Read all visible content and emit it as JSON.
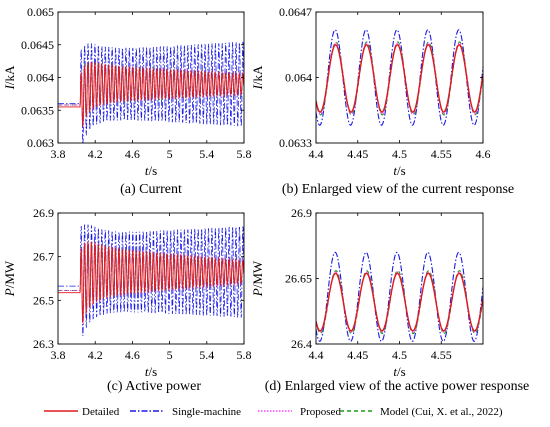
{
  "chart_data": [
    {
      "id": "a",
      "type": "line",
      "caption": "(a) Current",
      "xlabel_var": "t",
      "xlabel_unit": "/s",
      "ylabel_var": "I",
      "ylabel_unit": "/kA",
      "xlim": [
        3.8,
        5.8
      ],
      "ylim": [
        0.063,
        0.065
      ],
      "xticks": [
        "3.8",
        "4.2",
        "4.6",
        "5",
        "5.4",
        "5.8"
      ],
      "yticks": [
        "0.063",
        "0.0635",
        "0.064",
        "0.0645",
        "0.065"
      ],
      "pre_fault_values": {
        "Detailed": 0.06355,
        "Single-machine": 0.0636,
        "Proposed": 0.06358,
        "Model (Cui, X. et al., 2022)": 0.06358
      },
      "disturbance_time": 4.04,
      "center_value": 0.0639,
      "series_amplitude_trend": {
        "Detailed": {
          "start": 0.0003,
          "end": 0.00015
        },
        "Single-machine": {
          "start": 0.0005,
          "end": 0.00065
        },
        "Proposed": {
          "start": 0.0003,
          "end": 0.00018
        },
        "Model (Cui, X. et al., 2022)": {
          "start": 0.0003,
          "end": 0.00018
        }
      }
    },
    {
      "id": "b",
      "type": "line",
      "caption": "(b) Enlarged view of the current response",
      "xlabel_var": "t",
      "xlabel_unit": "/s",
      "ylabel_var": "I",
      "ylabel_unit": "/kA",
      "xlim": [
        4.4,
        4.6
      ],
      "ylim": [
        0.0633,
        0.0647
      ],
      "xticks": [
        "4.4",
        "4.45",
        "4.5",
        "4.55",
        "4.6"
      ],
      "yticks": [
        "0.0633",
        "0.064",
        "0.0647"
      ],
      "period": 0.037,
      "phase_peak": 4.424,
      "series": [
        {
          "name": "Detailed",
          "center": 0.06399,
          "amplitude": 0.00036
        },
        {
          "name": "Single-machine",
          "center": 0.064,
          "amplitude": 0.00051
        },
        {
          "name": "Proposed",
          "center": 0.06399,
          "amplitude": 0.00038
        },
        {
          "name": "Model (Cui, X. et al., 2022)",
          "center": 0.06399,
          "amplitude": 0.00039
        }
      ]
    },
    {
      "id": "c",
      "type": "line",
      "caption": "(c) Active power",
      "xlabel_var": "t",
      "xlabel_unit": "/s",
      "ylabel_var": "P",
      "ylabel_unit": "/MW",
      "xlim": [
        3.8,
        5.8
      ],
      "ylim": [
        26.3,
        26.9
      ],
      "xticks": [
        "3.8",
        "4.2",
        "4.6",
        "5",
        "5.4",
        "5.8"
      ],
      "yticks": [
        "26.3",
        "26.5",
        "26.7",
        "26.9"
      ],
      "pre_fault_values": {
        "Detailed": 26.535,
        "Single-machine": 26.565,
        "Proposed": 26.545,
        "Model (Cui, X. et al., 2022)": 26.545
      },
      "disturbance_time": 4.04,
      "center_value": 26.63,
      "series_amplitude_trend": {
        "Detailed": {
          "start": 0.12,
          "end": 0.05
        },
        "Single-machine": {
          "start": 0.17,
          "end": 0.21
        },
        "Proposed": {
          "start": 0.12,
          "end": 0.06
        },
        "Model (Cui, X. et al., 2022)": {
          "start": 0.12,
          "end": 0.06
        }
      }
    },
    {
      "id": "d",
      "type": "line",
      "caption": "(d) Enlarged view of the active power response",
      "xlabel_var": "t",
      "xlabel_unit": "/s",
      "ylabel_var": "P",
      "ylabel_unit": "/MW",
      "xlim": [
        4.4,
        4.6
      ],
      "ylim": [
        26.4,
        26.9
      ],
      "xticks": [
        "4.4",
        "4.45",
        "4.5",
        "4.55"
      ],
      "yticks": [
        "26.4",
        "26.65",
        "26.9"
      ],
      "period": 0.037,
      "phase_peak": 4.424,
      "series": [
        {
          "name": "Detailed",
          "center": 26.56,
          "amplitude": 0.11
        },
        {
          "name": "Single-machine",
          "center": 26.58,
          "amplitude": 0.17
        },
        {
          "name": "Proposed",
          "center": 26.56,
          "amplitude": 0.115
        },
        {
          "name": "Model (Cui, X. et al., 2022)",
          "center": 26.56,
          "amplitude": 0.12
        }
      ]
    }
  ],
  "legend": [
    {
      "name": "Detailed",
      "color": "#e0191b",
      "dash": "",
      "width": 1.4
    },
    {
      "name": "Single-machine",
      "color": "#1a1ae6",
      "dash": "6,2,1.5,2",
      "width": 1.1
    },
    {
      "name": "Proposed",
      "color": "#ff40ff",
      "dash": "1.5,1.5",
      "width": 1.1
    },
    {
      "name": "Model (Cui, X. et al., 2022)",
      "color": "#1a9a1a",
      "dash": "4,3",
      "width": 1.1
    }
  ]
}
